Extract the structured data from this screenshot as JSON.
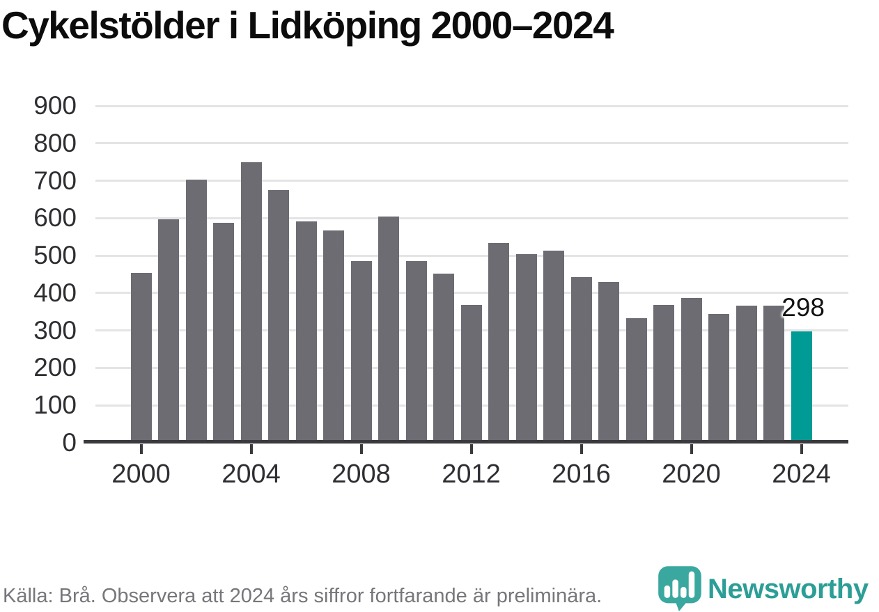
{
  "title": "Cykelstölder i Lidköping 2000–2024",
  "footer": {
    "source_note": "Källa: Brå. Observera att 2024 års siffror fortfarande är preliminära."
  },
  "branding": {
    "name": "Newsworthy",
    "logo_icon": "bar-chart-bubble-icon",
    "icon_color": "#3aa89e",
    "text_color": "#2c9e96"
  },
  "annotation": {
    "last_value_label": "298"
  },
  "colors": {
    "bar": "#6c6c72",
    "highlight": "#009b94",
    "gridline": "#e4e4e6",
    "axis": "#3a3a3e",
    "tick_label": "#2d2d32",
    "title": "#0c0c0c",
    "footer_text": "#76767b"
  },
  "chart_data": {
    "type": "bar",
    "title": "Cykelstölder i Lidköping 2000–2024",
    "xlabel": "",
    "ylabel": "",
    "categories": [
      2000,
      2001,
      2002,
      2003,
      2004,
      2005,
      2006,
      2007,
      2008,
      2009,
      2010,
      2011,
      2012,
      2013,
      2014,
      2015,
      2016,
      2017,
      2018,
      2019,
      2020,
      2021,
      2022,
      2023,
      2024
    ],
    "values": [
      453,
      596,
      702,
      588,
      750,
      675,
      592,
      567,
      486,
      605,
      486,
      452,
      369,
      533,
      503,
      513,
      443,
      430,
      333,
      368,
      387,
      344,
      367,
      366,
      298
    ],
    "highlight_index": 24,
    "value_label": {
      "index": 24,
      "text": "298"
    },
    "ylim": [
      0,
      900
    ],
    "yticks": [
      0,
      100,
      200,
      300,
      400,
      500,
      600,
      700,
      800,
      900
    ],
    "xticks": [
      2000,
      2004,
      2008,
      2012,
      2016,
      2020,
      2024
    ],
    "grid": "horizontal",
    "legend": "none"
  }
}
